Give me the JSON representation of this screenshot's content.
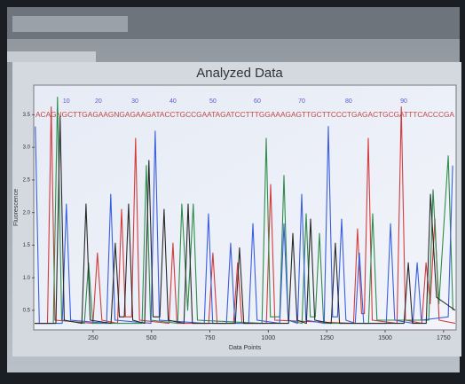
{
  "chart_data": {
    "type": "line",
    "title": "Analyzed Data",
    "x_label": "Data Points",
    "y_label": "Fluorescence",
    "sequence": "ACAGNGCTTGAGAAGNGAGAAGATACCTGCCGAATAGATCCTTTGGAAAGAGTTGCTTCCCTGAGACTGCGATTTCACCCGA",
    "base_labels": [
      10,
      20,
      30,
      40,
      50,
      60,
      70,
      80,
      90
    ],
    "base_x": [
      136,
      273,
      429,
      592,
      763,
      953,
      1143,
      1344,
      1580
    ],
    "xlim": [
      0,
      1800
    ],
    "xticks": [
      250,
      500,
      750,
      1000,
      1250,
      1500,
      1750
    ],
    "ylim": [
      0.2,
      3.9
    ],
    "yticks": [
      0.5,
      {
        "value": 1,
        "label": "1.0"
      },
      1.5,
      {
        "value": 2,
        "label": "2.0"
      },
      2.5,
      {
        "value": 3,
        "label": "3.0"
      },
      3.5
    ],
    "series": [
      {
        "color": "#d23c3c",
        "x": [
          0,
          55,
          71,
          87,
          250,
          269,
          288,
          355,
          372,
          389,
          415,
          432,
          449,
          575,
          592,
          609,
          745,
          763,
          781,
          851,
          869,
          887,
          992,
          1010,
          1028,
          1365,
          1382,
          1399,
          1411,
          1428,
          1445,
          1551,
          1569,
          1587,
          1657,
          1675,
          1693,
          1713,
          1731,
          1800
        ],
        "values": [
          0.3,
          0.3,
          3.62,
          0.35,
          0.3,
          1.38,
          0.35,
          0.3,
          2.05,
          0.4,
          0.4,
          3.14,
          0.35,
          0.3,
          1.53,
          0.3,
          0.3,
          1.38,
          0.3,
          0.3,
          1.23,
          0.3,
          0.3,
          2.43,
          0.35,
          0.3,
          1.75,
          0.45,
          0.45,
          3.14,
          0.35,
          0.3,
          3.62,
          0.35,
          0.3,
          1.23,
          0.6,
          1.9,
          0.35,
          0.3
        ]
      },
      {
        "color": "#2f8c4a",
        "x": [
          0,
          80,
          98,
          116,
          213,
          231,
          249,
          460,
          478,
          496,
          612,
          630,
          655,
          679,
          697,
          973,
          991,
          1009,
          1049,
          1067,
          1085,
          1144,
          1162,
          1180,
          1201,
          1219,
          1237,
          1429,
          1447,
          1465,
          1687,
          1705,
          1730,
          1770,
          1790
        ],
        "values": [
          0.3,
          0.3,
          3.77,
          0.35,
          0.3,
          1.23,
          0.3,
          0.3,
          2.72,
          0.35,
          0.3,
          2.13,
          0.5,
          2.13,
          0.35,
          0.3,
          3.14,
          0.4,
          0.4,
          2.57,
          0.35,
          0.3,
          1.98,
          0.4,
          0.4,
          1.68,
          0.3,
          0.3,
          1.98,
          0.35,
          0.35,
          2.35,
          0.6,
          2.87,
          0.5
        ]
      },
      {
        "color": "#3a5ee0",
        "x": [
          3,
          20,
          118,
          136,
          154,
          308,
          326,
          344,
          498,
          516,
          534,
          726,
          744,
          762,
          821,
          839,
          857,
          916,
          934,
          952,
          1049,
          1067,
          1085,
          1125,
          1143,
          1161,
          1239,
          1257,
          1275,
          1296,
          1314,
          1332,
          1372,
          1390,
          1408,
          1505,
          1523,
          1541,
          1619,
          1637,
          1655,
          1770,
          1789
        ],
        "values": [
          3.32,
          0.3,
          0.3,
          2.13,
          0.35,
          0.3,
          2.28,
          0.35,
          0.3,
          3.25,
          0.35,
          0.3,
          1.98,
          0.3,
          0.3,
          1.53,
          0.3,
          0.3,
          1.83,
          0.35,
          0.3,
          1.83,
          0.35,
          0.3,
          2.28,
          0.35,
          0.3,
          3.32,
          0.4,
          0.4,
          1.9,
          0.35,
          0.3,
          1.38,
          0.3,
          0.3,
          1.83,
          0.35,
          0.3,
          1.23,
          0.35,
          0.4,
          2.72
        ]
      },
      {
        "color": "#2a2a2a",
        "x": [
          0,
          91,
          109,
          127,
          202,
          220,
          238,
          327,
          345,
          363,
          384,
          402,
          420,
          471,
          489,
          507,
          536,
          554,
          572,
          639,
          657,
          675,
          859,
          877,
          895,
          1087,
          1105,
          1123,
          1163,
          1181,
          1199,
          1269,
          1287,
          1305,
          1581,
          1599,
          1617,
          1676,
          1694,
          1720,
          1800
        ],
        "values": [
          0.3,
          0.3,
          3.47,
          0.35,
          0.3,
          2.13,
          0.35,
          0.3,
          1.53,
          0.4,
          0.4,
          2.13,
          0.35,
          0.3,
          2.8,
          0.4,
          0.4,
          2.05,
          0.35,
          0.3,
          2.13,
          0.3,
          0.3,
          1.46,
          0.3,
          0.3,
          1.68,
          0.35,
          0.3,
          1.9,
          0.35,
          0.3,
          1.53,
          0.3,
          0.3,
          1.23,
          0.3,
          0.3,
          2.28,
          0.7,
          0.5
        ]
      }
    ]
  }
}
